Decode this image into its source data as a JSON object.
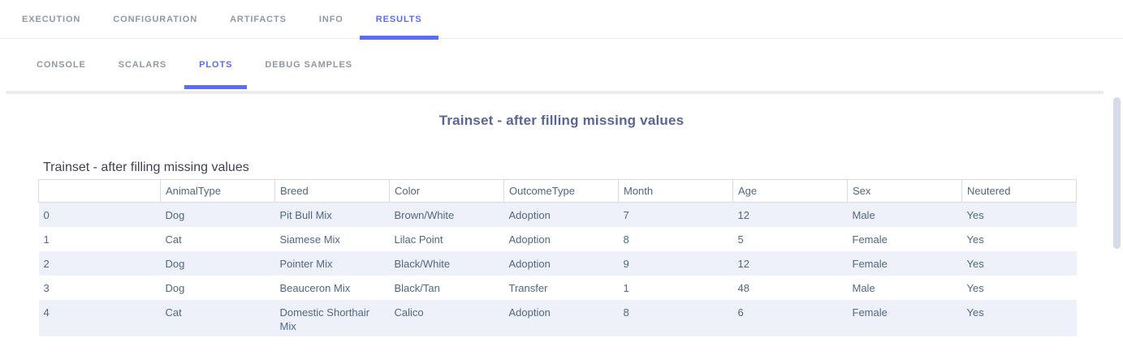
{
  "nav": {
    "primary": [
      {
        "label": "EXECUTION",
        "active": false
      },
      {
        "label": "CONFIGURATION",
        "active": false
      },
      {
        "label": "ARTIFACTS",
        "active": false
      },
      {
        "label": "INFO",
        "active": false
      },
      {
        "label": "RESULTS",
        "active": true
      }
    ],
    "secondary": [
      {
        "label": "CONSOLE",
        "active": false
      },
      {
        "label": "SCALARS",
        "active": false
      },
      {
        "label": "PLOTS",
        "active": true
      },
      {
        "label": "DEBUG SAMPLES",
        "active": false
      }
    ]
  },
  "plot": {
    "display_title": "Trainset - after filling missing values"
  },
  "chart_data": {
    "type": "table",
    "title": "Trainset - after filling missing values",
    "columns": [
      "",
      "AnimalType",
      "Breed",
      "Color",
      "OutcomeType",
      "Month",
      "Age",
      "Sex",
      "Neutered"
    ],
    "rows": [
      [
        "0",
        "Dog",
        "Pit Bull Mix",
        "Brown/White",
        "Adoption",
        "7",
        "12",
        "Male",
        "Yes"
      ],
      [
        "1",
        "Cat",
        "Siamese Mix",
        "Lilac Point",
        "Adoption",
        "8",
        "5",
        "Female",
        "Yes"
      ],
      [
        "2",
        "Dog",
        "Pointer Mix",
        "Black/White",
        "Adoption",
        "9",
        "12",
        "Female",
        "Yes"
      ],
      [
        "3",
        "Dog",
        "Beauceron Mix",
        "Black/Tan",
        "Transfer",
        "1",
        "48",
        "Male",
        "Yes"
      ],
      [
        "4",
        "Cat",
        "Domestic Shorthair Mix",
        "Calico",
        "Adoption",
        "8",
        "6",
        "Female",
        "Yes"
      ]
    ],
    "layout": {
      "alternating_row_shading": "even",
      "grid": "header-only",
      "title_position": "top-left"
    }
  },
  "colors": {
    "accent": "#5b6cf5",
    "tab_inactive": "#9098a6",
    "plot_title": "#5a6596",
    "table_text": "#506784",
    "row_alt": "#eef1fa",
    "header_border": "#d7dae1"
  }
}
